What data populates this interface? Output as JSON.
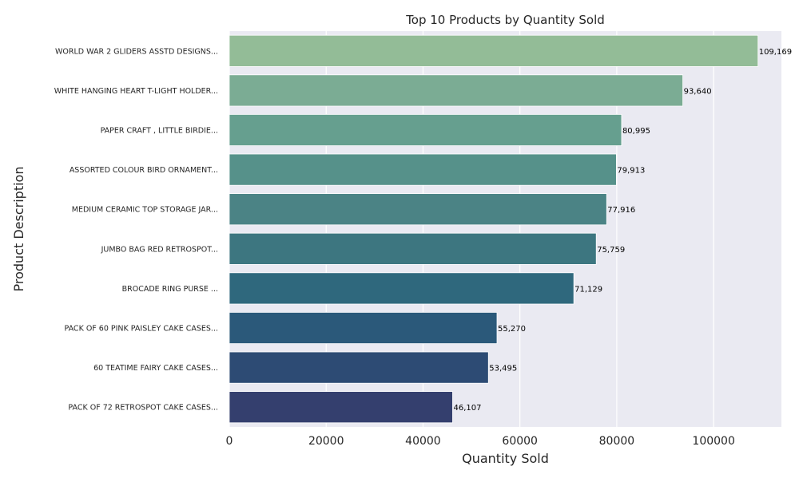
{
  "chart_data": {
    "type": "bar",
    "orientation": "horizontal",
    "title": "Top 10 Products by Quantity Sold",
    "xlabel": "Quantity Sold",
    "ylabel": "Product Description",
    "xlim": [
      0,
      114000
    ],
    "xticks": [
      0,
      20000,
      40000,
      60000,
      80000,
      100000
    ],
    "xtick_labels": [
      "0",
      "20000",
      "40000",
      "60000",
      "80000",
      "100000"
    ],
    "grid": true,
    "categories": [
      "WORLD WAR 2 GLIDERS ASSTD DESIGNS...",
      "WHITE HANGING HEART T-LIGHT HOLDER...",
      "PAPER CRAFT , LITTLE BIRDIE...",
      "ASSORTED COLOUR BIRD ORNAMENT...",
      "MEDIUM CERAMIC TOP STORAGE JAR...",
      "JUMBO BAG RED RETROSPOT...",
      "BROCADE RING PURSE ...",
      "PACK OF 60 PINK PAISLEY CAKE CASES...",
      "60 TEATIME FAIRY CAKE CASES...",
      "PACK OF 72 RETROSPOT CAKE CASES..."
    ],
    "values": [
      109169,
      93640,
      80995,
      79913,
      77916,
      75759,
      71129,
      55270,
      53495,
      46107
    ],
    "value_labels": [
      "109,169",
      "93,640",
      "80,995",
      "79,913",
      "77,916",
      "75,759",
      "71,129",
      "55,270",
      "53,495",
      "46,107"
    ],
    "colors": [
      "#93bc97",
      "#7bac94",
      "#669f8f",
      "#56918a",
      "#4b8385",
      "#3d7680",
      "#2f687d",
      "#2b597a",
      "#2d4b74",
      "#343f6e"
    ],
    "style": {
      "background": "#eaeaf2",
      "grid_color": "#ffffff",
      "text_color": "#262626"
    }
  }
}
